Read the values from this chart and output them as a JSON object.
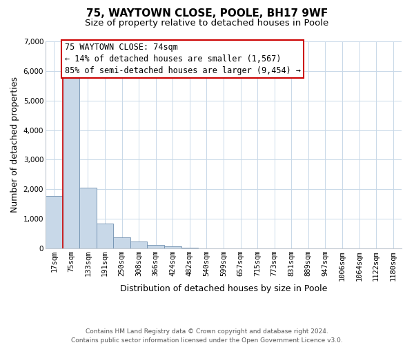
{
  "title": "75, WAYTOWN CLOSE, POOLE, BH17 9WF",
  "subtitle": "Size of property relative to detached houses in Poole",
  "xlabel": "Distribution of detached houses by size in Poole",
  "ylabel": "Number of detached properties",
  "bar_labels": [
    "17sqm",
    "75sqm",
    "133sqm",
    "191sqm",
    "250sqm",
    "308sqm",
    "366sqm",
    "424sqm",
    "482sqm",
    "540sqm",
    "599sqm",
    "657sqm",
    "715sqm",
    "773sqm",
    "831sqm",
    "889sqm",
    "947sqm",
    "1006sqm",
    "1064sqm",
    "1122sqm",
    "1180sqm"
  ],
  "bar_values": [
    1780,
    5780,
    2060,
    840,
    370,
    225,
    115,
    65,
    30,
    10,
    5,
    0,
    0,
    0,
    0,
    0,
    0,
    0,
    0,
    0,
    0
  ],
  "bar_color": "#c8d8e8",
  "bar_edge_color": "#7090b0",
  "property_line_idx": 1,
  "property_line_color": "#cc0000",
  "annotation_line1": "75 WAYTOWN CLOSE: 74sqm",
  "annotation_line2": "← 14% of detached houses are smaller (1,567)",
  "annotation_line3": "85% of semi-detached houses are larger (9,454) →",
  "annotation_box_color": "#ffffff",
  "annotation_box_edge_color": "#cc0000",
  "ylim": [
    0,
    7000
  ],
  "yticks": [
    0,
    1000,
    2000,
    3000,
    4000,
    5000,
    6000,
    7000
  ],
  "footer_line1": "Contains HM Land Registry data © Crown copyright and database right 2024.",
  "footer_line2": "Contains public sector information licensed under the Open Government Licence v3.0.",
  "grid_color": "#c8d8e8",
  "bg_color": "#ffffff",
  "fig_bg_color": "#ffffff",
  "title_fontsize": 11,
  "subtitle_fontsize": 9.5,
  "axis_label_fontsize": 9,
  "tick_fontsize": 7.5,
  "annotation_fontsize": 8.5,
  "footer_fontsize": 6.5
}
